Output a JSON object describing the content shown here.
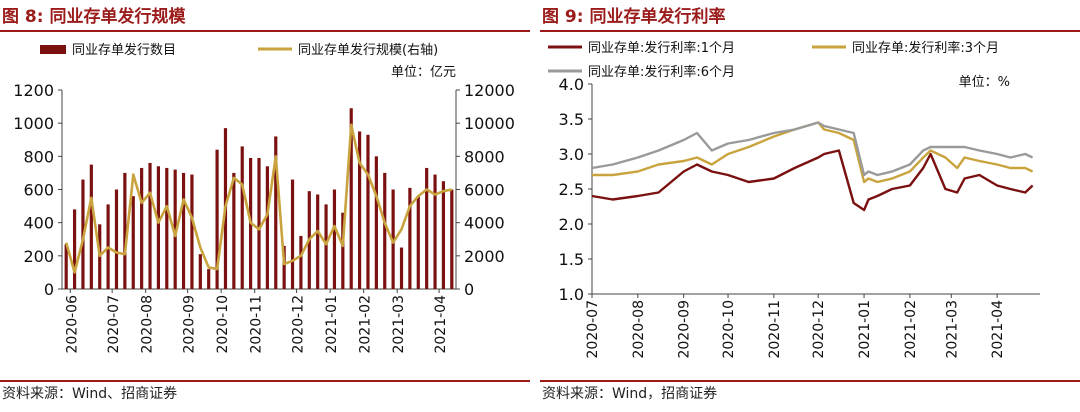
{
  "figure_left": {
    "title": "图 8:  同业存单发行规模",
    "source": "资料来源：Wind、招商证券",
    "unit": "单位：亿元"
  },
  "figure_right": {
    "title": "图 9:  同业存单发行利率",
    "source": "资料来源：Wind，招商证券",
    "unit": "单位：%"
  },
  "colors": {
    "accent": "#9b1b1b",
    "bar": "#7b1010",
    "gold": "#c9a43e",
    "gray": "#9a9a9a",
    "darkred": "#7a1010"
  },
  "chart_data": [
    {
      "type": "bar",
      "title": "同业存单发行规模",
      "dates": [
        "2020-06-01",
        "2020-06-08",
        "2020-06-15",
        "2020-06-22",
        "2020-06-29",
        "2020-07-06",
        "2020-07-13",
        "2020-07-20",
        "2020-07-27",
        "2020-08-03",
        "2020-08-10",
        "2020-08-17",
        "2020-08-24",
        "2020-08-31",
        "2020-09-07",
        "2020-09-14",
        "2020-09-21",
        "2020-09-28",
        "2020-10-05",
        "2020-10-12",
        "2020-10-19",
        "2020-10-26",
        "2020-11-02",
        "2020-11-09",
        "2020-11-16",
        "2020-11-23",
        "2020-11-30",
        "2020-12-07",
        "2020-12-14",
        "2020-12-21",
        "2020-12-28",
        "2021-01-04",
        "2021-01-11",
        "2021-01-18",
        "2021-01-25",
        "2021-02-01",
        "2021-02-08",
        "2021-02-15",
        "2021-02-22",
        "2021-03-01",
        "2021-03-08",
        "2021-03-15",
        "2021-03-22",
        "2021-03-29",
        "2021-04-05",
        "2021-04-12",
        "2021-04-19"
      ],
      "x_tick_labels": [
        "2020-06",
        "2020-07",
        "2020-08",
        "2020-09",
        "2020-10",
        "2020-11",
        "2020-12",
        "2021-01",
        "2021-02",
        "2021-03",
        "2021-04"
      ],
      "series": [
        {
          "name": "同业存单发行数目",
          "axis": "left",
          "type": "bar",
          "values": [
            270,
            480,
            660,
            750,
            390,
            510,
            600,
            700,
            560,
            730,
            760,
            740,
            730,
            720,
            700,
            690,
            210,
            120,
            840,
            970,
            700,
            860,
            790,
            790,
            740,
            920,
            260,
            660,
            320,
            590,
            570,
            510,
            600,
            460,
            1090,
            950,
            930,
            800,
            700,
            600,
            250,
            610,
            560,
            730,
            690,
            650,
            600
          ]
        },
        {
          "name": "同业存单发行规模(右轴)",
          "axis": "right",
          "type": "line",
          "values": [
            2800,
            1000,
            3000,
            5500,
            2000,
            2500,
            2200,
            2100,
            6900,
            5200,
            5800,
            4000,
            5000,
            3200,
            5400,
            4300,
            2500,
            1300,
            1200,
            5000,
            6700,
            6300,
            4000,
            3600,
            4500,
            8000,
            1500,
            1700,
            2000,
            3000,
            3500,
            2700,
            3800,
            2600,
            9900,
            7600,
            6900,
            5600,
            4000,
            2800,
            3600,
            5000,
            5600,
            6000,
            5700,
            5900,
            6000
          ]
        }
      ],
      "y_left": {
        "min": 0,
        "max": 1200,
        "ticks": [
          0,
          200,
          400,
          600,
          800,
          1000,
          1200
        ]
      },
      "y_right": {
        "min": 0,
        "max": 12000,
        "ticks": [
          0,
          2000,
          4000,
          6000,
          8000,
          10000,
          12000
        ]
      },
      "legend": "top"
    },
    {
      "type": "line",
      "title": "同业存单发行利率",
      "dates": [
        "2020-07-01",
        "2020-07-15",
        "2020-08-01",
        "2020-08-15",
        "2020-09-01",
        "2020-09-10",
        "2020-09-20",
        "2020-10-01",
        "2020-10-15",
        "2020-11-01",
        "2020-11-15",
        "2020-12-01",
        "2020-12-05",
        "2020-12-15",
        "2020-12-25",
        "2021-01-01",
        "2021-01-04",
        "2021-01-10",
        "2021-01-20",
        "2021-02-01",
        "2021-02-10",
        "2021-02-15",
        "2021-02-25",
        "2021-03-05",
        "2021-03-10",
        "2021-03-20",
        "2021-04-01",
        "2021-04-10",
        "2021-04-20",
        "2021-04-25"
      ],
      "x_tick_labels": [
        "2020-07",
        "2020-08",
        "2020-09",
        "2020-10",
        "2020-11",
        "2020-12",
        "2021-01",
        "2021-02",
        "2021-03",
        "2021-04"
      ],
      "series": [
        {
          "name": "同业存单:发行利率:1个月",
          "values": [
            2.4,
            2.35,
            2.4,
            2.45,
            2.75,
            2.85,
            2.75,
            2.7,
            2.6,
            2.65,
            2.8,
            2.95,
            3.0,
            3.05,
            2.3,
            2.2,
            2.35,
            2.4,
            2.5,
            2.55,
            2.8,
            3.0,
            2.5,
            2.45,
            2.65,
            2.7,
            2.55,
            2.5,
            2.45,
            2.55
          ]
        },
        {
          "name": "同业存单:发行利率:3个月",
          "values": [
            2.7,
            2.7,
            2.75,
            2.85,
            2.9,
            2.95,
            2.85,
            3.0,
            3.1,
            3.25,
            3.35,
            3.45,
            3.35,
            3.3,
            3.2,
            2.6,
            2.65,
            2.6,
            2.65,
            2.75,
            2.95,
            3.05,
            2.95,
            2.8,
            2.95,
            2.9,
            2.85,
            2.8,
            2.8,
            2.75
          ]
        },
        {
          "name": "同业存单:发行利率:6个月",
          "values": [
            2.8,
            2.85,
            2.95,
            3.05,
            3.2,
            3.3,
            3.05,
            3.15,
            3.2,
            3.3,
            3.35,
            3.45,
            3.4,
            3.35,
            3.3,
            2.7,
            2.75,
            2.7,
            2.75,
            2.85,
            3.05,
            3.1,
            3.1,
            3.1,
            3.1,
            3.05,
            3.0,
            2.95,
            3.0,
            2.95
          ]
        }
      ],
      "y": {
        "min": 1.0,
        "max": 4.0,
        "ticks": [
          1.0,
          1.5,
          2.0,
          2.5,
          3.0,
          3.5,
          4.0
        ]
      },
      "legend": "top"
    }
  ]
}
